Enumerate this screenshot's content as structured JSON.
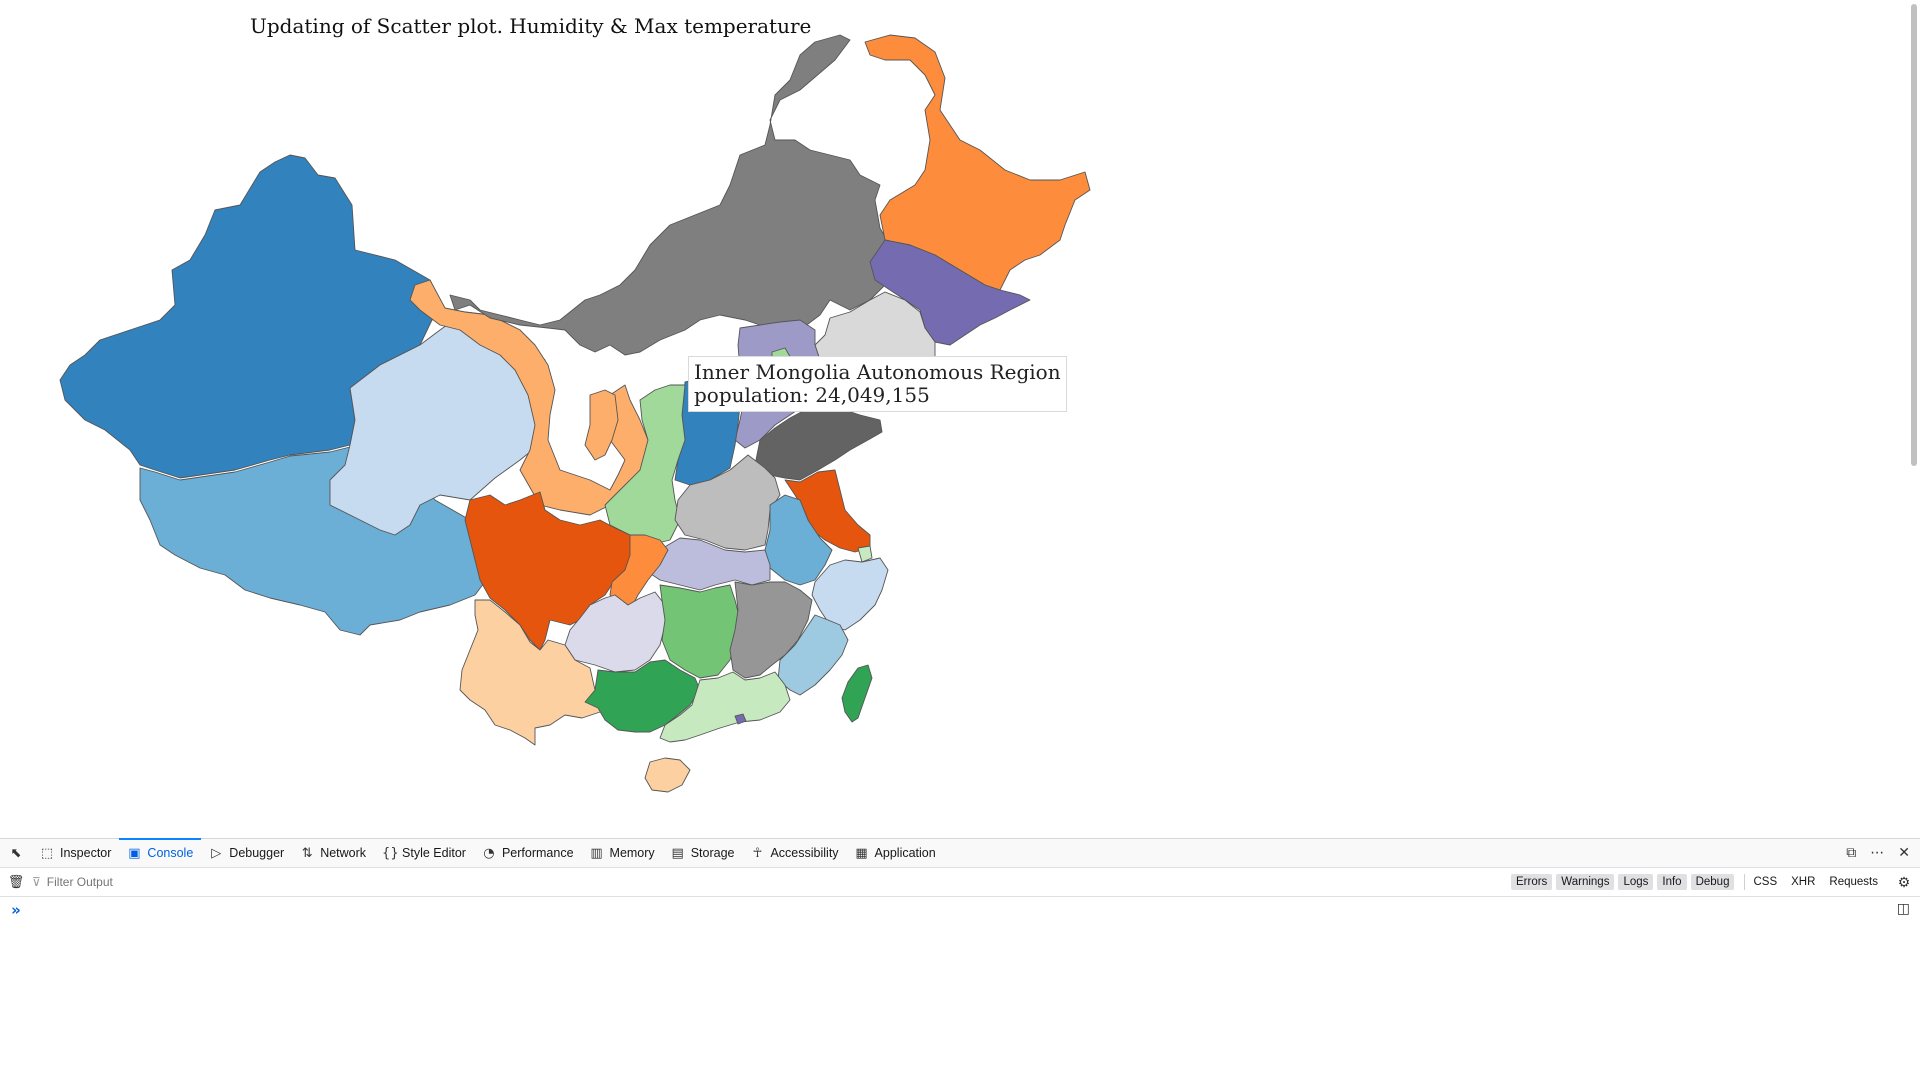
{
  "page": {
    "title": "Updating of Scatter plot. Humidity & Max temperature",
    "tooltip": {
      "name": "Inner Mongolia Autonomous Region",
      "population": "population: 24,049,155"
    }
  },
  "map": {
    "regions": [
      {
        "name": "Xinjiang",
        "color": "#3182bd"
      },
      {
        "name": "Tibet",
        "color": "#6baed6"
      },
      {
        "name": "Qinghai",
        "color": "#c6dbef"
      },
      {
        "name": "Gansu",
        "color": "#fdae6b"
      },
      {
        "name": "Inner Mongolia",
        "color": "#7f7f7f"
      },
      {
        "name": "Heilongjiang",
        "color": "#fd8d3c"
      },
      {
        "name": "Jilin",
        "color": "#756bb1"
      },
      {
        "name": "Liaoning",
        "color": "#d9d9d9"
      },
      {
        "name": "Hebei",
        "color": "#9e9ac8"
      },
      {
        "name": "Shanxi",
        "color": "#3182bd"
      },
      {
        "name": "Shaanxi",
        "color": "#a1d99b"
      },
      {
        "name": "Ningxia",
        "color": "#fdae6b"
      },
      {
        "name": "Shandong",
        "color": "#636363"
      },
      {
        "name": "Henan",
        "color": "#bdbdbd"
      },
      {
        "name": "Jiangsu",
        "color": "#e6550d"
      },
      {
        "name": "Anhui",
        "color": "#6baed6"
      },
      {
        "name": "Shanghai",
        "color": "#c7e9c0"
      },
      {
        "name": "Zhejiang",
        "color": "#c6dbef"
      },
      {
        "name": "Hubei",
        "color": "#bcbddc"
      },
      {
        "name": "Sichuan",
        "color": "#e6550d"
      },
      {
        "name": "Chongqing",
        "color": "#fd8d3c"
      },
      {
        "name": "Guizhou",
        "color": "#dadaeb"
      },
      {
        "name": "Hunan",
        "color": "#74c476"
      },
      {
        "name": "Jiangxi",
        "color": "#969696"
      },
      {
        "name": "Fujian",
        "color": "#9ecae1"
      },
      {
        "name": "Yunnan",
        "color": "#fdd0a2"
      },
      {
        "name": "Guangxi",
        "color": "#31a354"
      },
      {
        "name": "Guangdong",
        "color": "#c7e9c0"
      },
      {
        "name": "Hainan",
        "color": "#fdd0a2"
      },
      {
        "name": "Taiwan",
        "color": "#31a354"
      },
      {
        "name": "Beijing",
        "color": "#a1d99b"
      },
      {
        "name": "Hong Kong",
        "color": "#756bb1"
      }
    ]
  },
  "devtools": {
    "tabs": [
      {
        "label": "Inspector",
        "icon": "inspector-icon",
        "glyph": "⬚"
      },
      {
        "label": "Console",
        "icon": "console-icon",
        "glyph": "▣"
      },
      {
        "label": "Debugger",
        "icon": "debugger-icon",
        "glyph": "▷"
      },
      {
        "label": "Network",
        "icon": "network-icon",
        "glyph": "⇅"
      },
      {
        "label": "Style Editor",
        "icon": "style-editor-icon",
        "glyph": "{}"
      },
      {
        "label": "Performance",
        "icon": "performance-icon",
        "glyph": "◔"
      },
      {
        "label": "Memory",
        "icon": "memory-icon",
        "glyph": "▥"
      },
      {
        "label": "Storage",
        "icon": "storage-icon",
        "glyph": "▤"
      },
      {
        "label": "Accessibility",
        "icon": "accessibility-icon",
        "glyph": "☥"
      },
      {
        "label": "Application",
        "icon": "application-icon",
        "glyph": "▦"
      }
    ],
    "active_tab": "Console",
    "filter": {
      "placeholder": "Filter Output",
      "value": ""
    },
    "filter_buttons": [
      "Errors",
      "Warnings",
      "Logs",
      "Info",
      "Debug"
    ],
    "filter_toggles": [
      "CSS",
      "XHR",
      "Requests"
    ]
  }
}
